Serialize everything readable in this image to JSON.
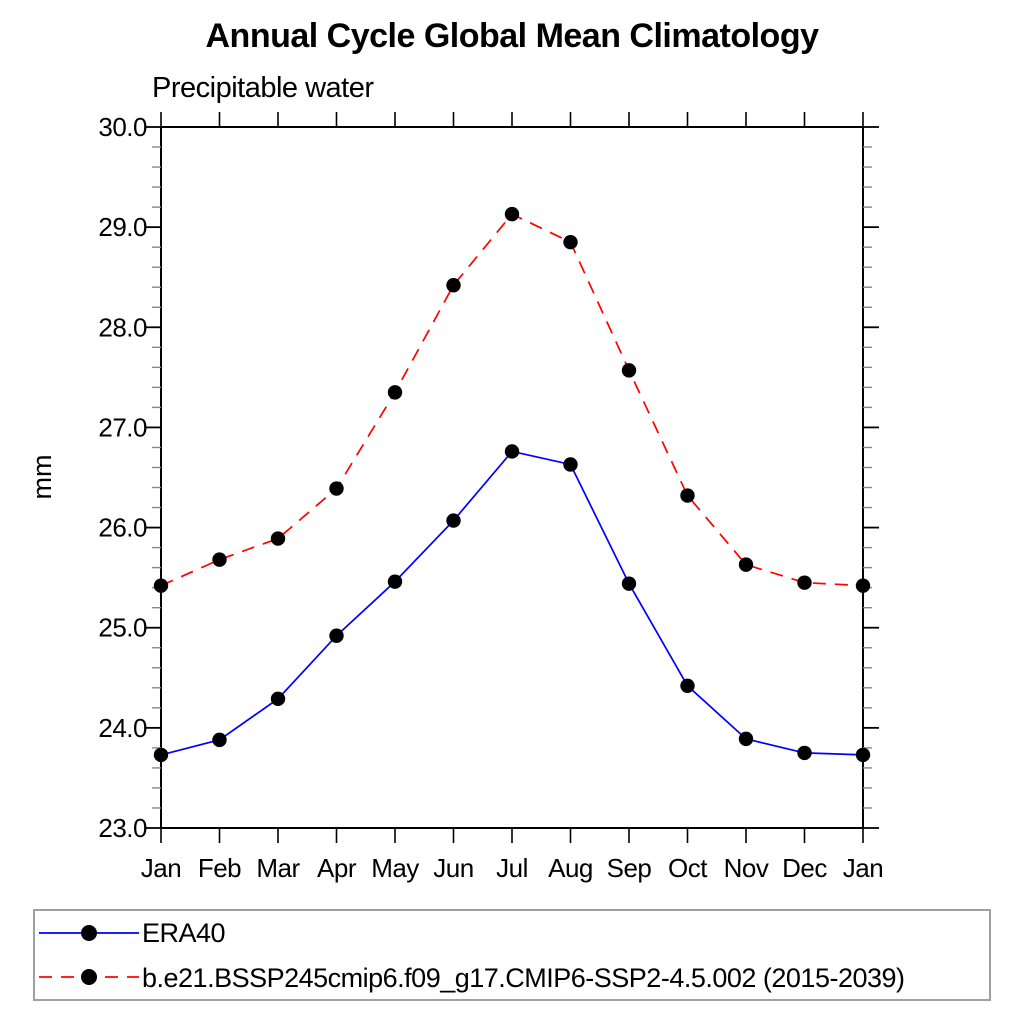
{
  "page": {
    "background": "#ffffff",
    "axis_color": "#000000",
    "minor_tick_color": "#888888",
    "legend_border_color": "#a0a0a0",
    "marker_color": "#000000"
  },
  "chart_data": {
    "type": "line",
    "title": "Annual Cycle Global Mean Climatology",
    "subtitle": "Precipitable water",
    "ylabel": "mm",
    "xlabel": "",
    "categories": [
      "Jan",
      "Feb",
      "Mar",
      "Apr",
      "May",
      "Jun",
      "Jul",
      "Aug",
      "Sep",
      "Oct",
      "Nov",
      "Dec",
      "Jan"
    ],
    "ylim": [
      23.0,
      30.0
    ],
    "ytick_major": [
      23.0,
      24.0,
      25.0,
      26.0,
      27.0,
      28.0,
      29.0,
      30.0
    ],
    "ytick_labels": [
      "23.0",
      "24.0",
      "25.0",
      "26.0",
      "27.0",
      "28.0",
      "29.0",
      "30.0"
    ],
    "ytick_minor_step": 0.2,
    "grid": false,
    "legend_position": "bottom",
    "series": [
      {
        "name": "ERA40",
        "color": "#0000ff",
        "dash": "solid",
        "marker": "filled-circle",
        "values": [
          23.73,
          23.88,
          24.29,
          24.92,
          25.46,
          26.07,
          26.76,
          26.63,
          25.44,
          24.42,
          23.89,
          23.75,
          23.73
        ]
      },
      {
        "name": "b.e21.BSSP245cmip6.f09_g17.CMIP6-SSP2-4.5.002 (2015-2039)",
        "color": "#ff0000",
        "dash": "dashed",
        "marker": "filled-circle",
        "values": [
          25.42,
          25.68,
          25.89,
          26.39,
          27.35,
          28.42,
          29.13,
          28.85,
          27.57,
          26.32,
          25.63,
          25.45,
          25.42
        ]
      }
    ]
  }
}
